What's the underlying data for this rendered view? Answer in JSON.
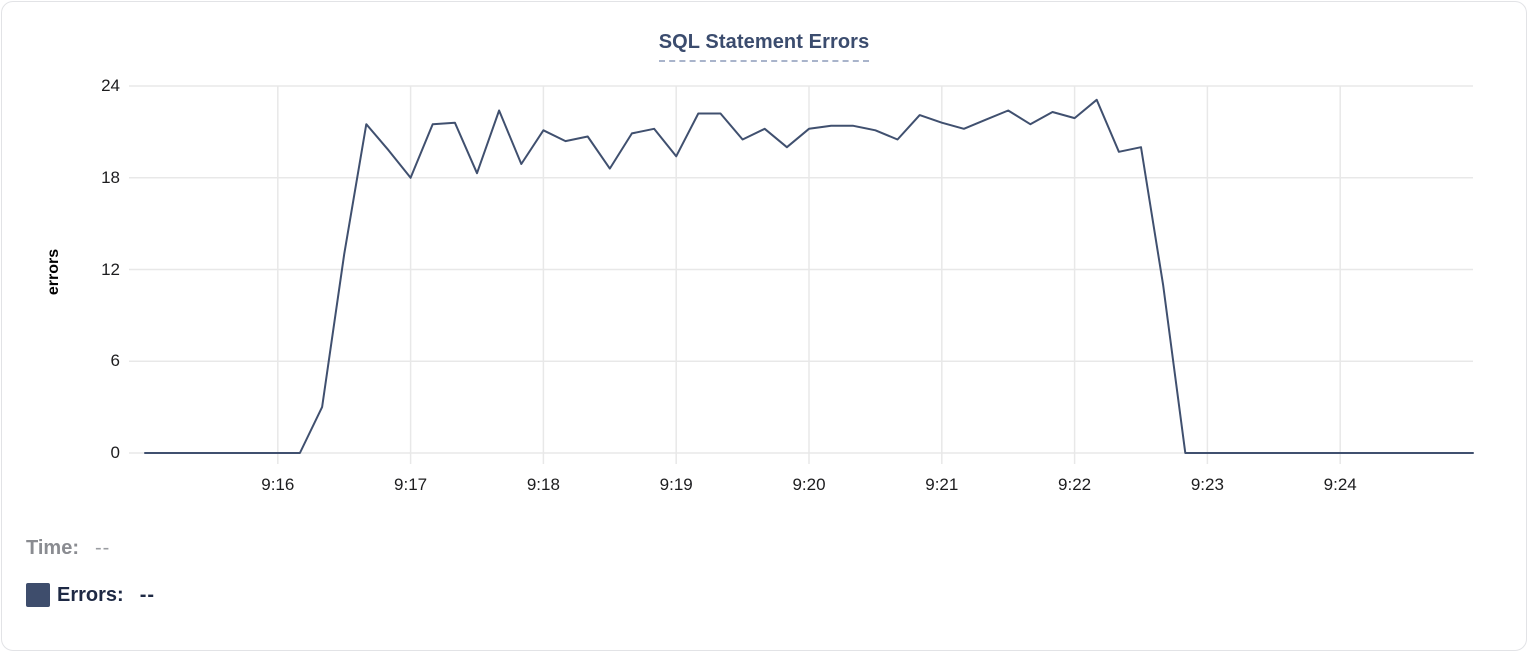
{
  "colors": {
    "line": "#40506f",
    "swatch": "#3e4d6c",
    "title": "#3b4c6e",
    "grid": "#e8e8e8",
    "tick_text": "#1d1d1f",
    "time_label_gray": "#8a8c91",
    "errors_label_navy": "#1e2944",
    "card_border": "#e2e3e6"
  },
  "tooltip": {
    "time_label": "Time:",
    "time_value": "--",
    "errors_label": "Errors:",
    "errors_value": "--"
  },
  "chart_data": {
    "type": "line",
    "title": "SQL Statement Errors",
    "xlabel": "",
    "ylabel": "errors",
    "ylim": [
      0,
      24
    ],
    "y_ticks": [
      24,
      18,
      12,
      6,
      0
    ],
    "x_tick_labels": [
      "9:16",
      "9:17",
      "9:18",
      "9:19",
      "9:20",
      "9:21",
      "9:22",
      "9:23",
      "9:24"
    ],
    "x_domain": [
      "9:15:00",
      "9:25:00"
    ],
    "grid": true,
    "legend_position": "bottom-left",
    "series": [
      {
        "name": "Errors",
        "points": [
          [
            "9:15:00",
            0
          ],
          [
            "9:15:10",
            0
          ],
          [
            "9:15:20",
            0
          ],
          [
            "9:15:30",
            0
          ],
          [
            "9:15:40",
            0
          ],
          [
            "9:15:50",
            0
          ],
          [
            "9:16:00",
            0
          ],
          [
            "9:16:10",
            0
          ],
          [
            "9:16:20",
            3
          ],
          [
            "9:16:30",
            13
          ],
          [
            "9:16:40",
            21.5
          ],
          [
            "9:16:50",
            19.8
          ],
          [
            "9:17:00",
            18
          ],
          [
            "9:17:10",
            21.5
          ],
          [
            "9:17:20",
            21.6
          ],
          [
            "9:17:30",
            18.3
          ],
          [
            "9:17:40",
            22.4
          ],
          [
            "9:17:50",
            18.9
          ],
          [
            "9:18:00",
            21.1
          ],
          [
            "9:18:10",
            20.4
          ],
          [
            "9:18:20",
            20.7
          ],
          [
            "9:18:30",
            18.6
          ],
          [
            "9:18:40",
            20.9
          ],
          [
            "9:18:50",
            21.2
          ],
          [
            "9:19:00",
            19.4
          ],
          [
            "9:19:10",
            22.2
          ],
          [
            "9:19:20",
            22.2
          ],
          [
            "9:19:30",
            20.5
          ],
          [
            "9:19:40",
            21.2
          ],
          [
            "9:19:50",
            20.0
          ],
          [
            "9:20:00",
            21.2
          ],
          [
            "9:20:10",
            21.4
          ],
          [
            "9:20:20",
            21.4
          ],
          [
            "9:20:30",
            21.1
          ],
          [
            "9:20:40",
            20.5
          ],
          [
            "9:20:50",
            22.1
          ],
          [
            "9:21:00",
            21.6
          ],
          [
            "9:21:10",
            21.2
          ],
          [
            "9:21:20",
            21.8
          ],
          [
            "9:21:30",
            22.4
          ],
          [
            "9:21:40",
            21.5
          ],
          [
            "9:21:50",
            22.3
          ],
          [
            "9:22:00",
            21.9
          ],
          [
            "9:22:10",
            23.1
          ],
          [
            "9:22:20",
            19.7
          ],
          [
            "9:22:30",
            20.0
          ],
          [
            "9:22:40",
            11
          ],
          [
            "9:22:50",
            0
          ],
          [
            "9:23:00",
            0
          ],
          [
            "9:23:10",
            0
          ],
          [
            "9:23:20",
            0
          ],
          [
            "9:23:30",
            0
          ],
          [
            "9:23:40",
            0
          ],
          [
            "9:23:50",
            0
          ],
          [
            "9:24:00",
            0
          ],
          [
            "9:24:10",
            0
          ],
          [
            "9:24:20",
            0
          ],
          [
            "9:24:30",
            0
          ],
          [
            "9:24:40",
            0
          ],
          [
            "9:24:50",
            0
          ],
          [
            "9:25:00",
            0
          ]
        ]
      }
    ]
  }
}
